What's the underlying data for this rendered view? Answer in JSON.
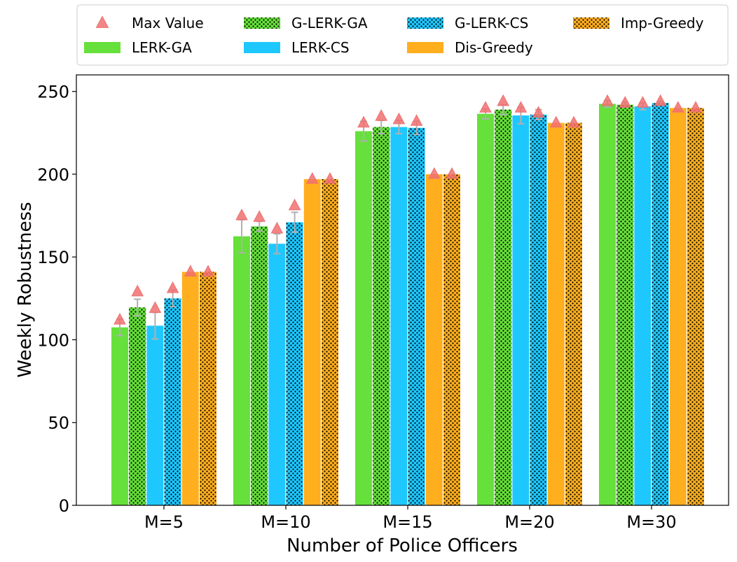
{
  "chart_data": {
    "type": "bar",
    "xlabel": "Number of Police Officers",
    "ylabel": "Weekly Robustness",
    "ylim": [
      0,
      260
    ],
    "yticks": [
      0,
      50,
      100,
      150,
      200,
      250
    ],
    "categories": [
      "M=5",
      "M=10",
      "M=15",
      "M=20",
      "M=30"
    ],
    "legend_position": "top, outside plot, 4 columns",
    "legend_order": [
      "Max Value",
      "LERK-GA",
      "G-LERK-GA",
      "LERK-CS",
      "G-LERK-CS",
      "Dis-Greedy",
      "Imp-Greedy"
    ],
    "max_marker": {
      "name": "Max Value",
      "color": "#f07070",
      "shape": "triangle"
    },
    "series": [
      {
        "name": "LERK-GA",
        "color": "#66e03a",
        "hatch": false,
        "values": [
          107.5,
          162.5,
          226,
          236.5,
          242.5
        ],
        "errors": [
          5,
          10,
          6,
          3,
          2
        ],
        "max": [
          112,
          175,
          231,
          240,
          244
        ]
      },
      {
        "name": "G-LERK-GA",
        "color": "#66e03a",
        "hatch": true,
        "values": [
          119.5,
          168.5,
          228.5,
          239,
          242
        ],
        "errors": [
          5,
          3,
          4,
          3,
          1.5
        ],
        "max": [
          129,
          174,
          235,
          244,
          243
        ]
      },
      {
        "name": "LERK-CS",
        "color": "#1ec8ff",
        "hatch": false,
        "values": [
          108.5,
          158,
          228.5,
          235.5,
          241
        ],
        "errors": [
          8,
          6,
          4,
          5,
          2
        ],
        "max": [
          119,
          167,
          233,
          240,
          243
        ]
      },
      {
        "name": "G-LERK-CS",
        "color": "#1ec8ff",
        "hatch": true,
        "values": [
          125,
          171,
          228,
          236,
          243
        ],
        "errors": [
          5,
          6,
          4,
          3,
          1
        ],
        "max": [
          131,
          181,
          232,
          237,
          244
        ]
      },
      {
        "name": "Dis-Greedy",
        "color": "#ffae1e",
        "hatch": false,
        "values": [
          141,
          197,
          200,
          231,
          240
        ],
        "errors": [
          0,
          0,
          0,
          0,
          0
        ],
        "max": [
          141,
          197,
          200,
          231,
          240
        ]
      },
      {
        "name": "Imp-Greedy",
        "color": "#ffae1e",
        "hatch": true,
        "values": [
          141,
          197,
          200,
          231,
          240
        ],
        "errors": [
          0,
          0,
          0,
          0,
          0
        ],
        "max": [
          141,
          197,
          200,
          231,
          240
        ]
      }
    ]
  }
}
